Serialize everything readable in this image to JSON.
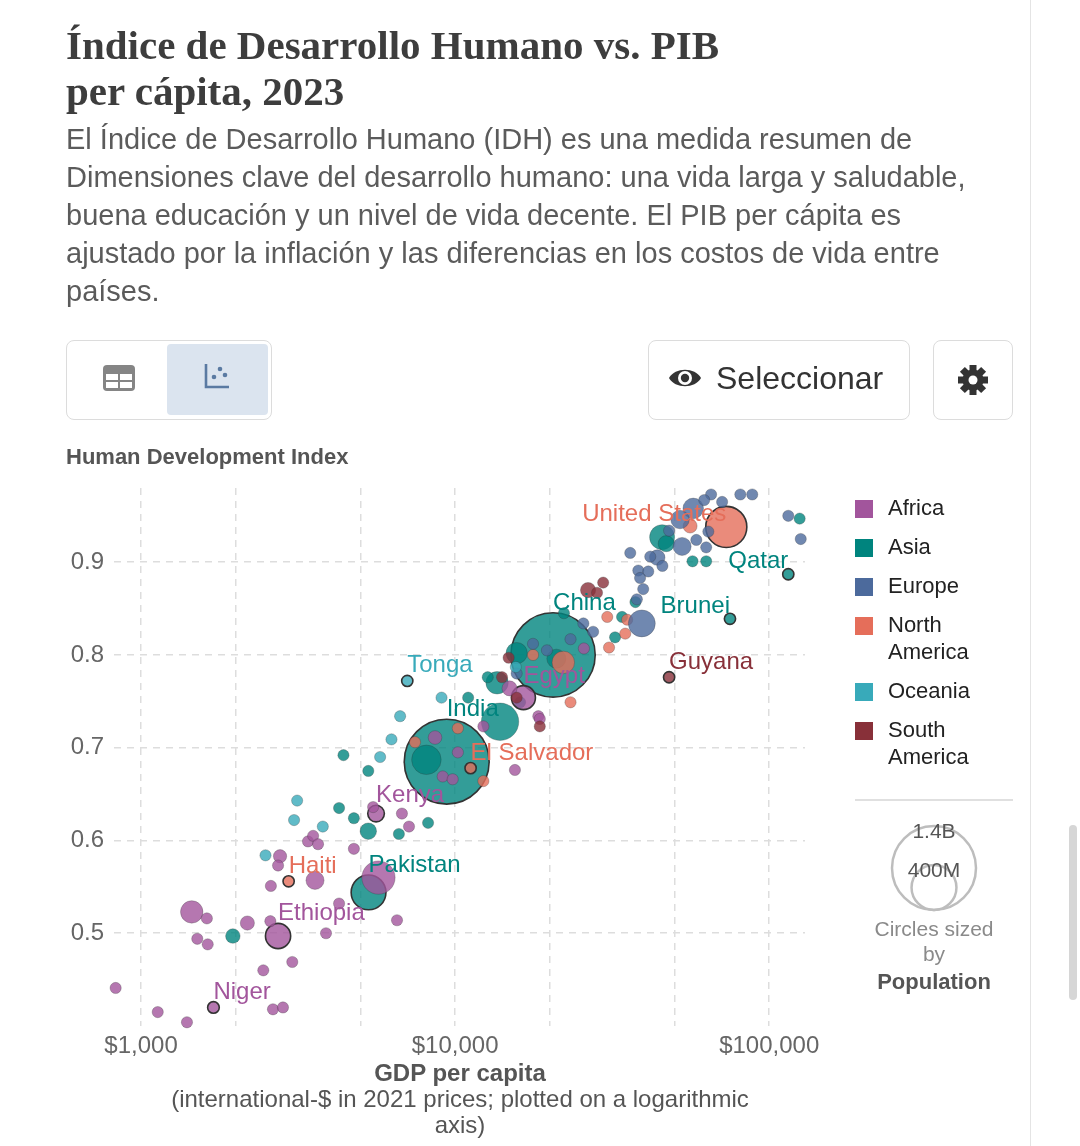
{
  "chart_data": {
    "type": "bubble",
    "title": "Índice de Desarrollo Humano vs. PIB per cápita, 2023",
    "subtitle": "El Índice de Desarrollo Humano (IDH) es una medida resumen de Dimensiones clave del desarrollo humano: una vida larga y saludable, buena educación y un nivel de vida decente. El PIB per cápita es ajustado por la inflación y las diferencias en los costos de vida entre países.",
    "xlabel": "GDP per capita (international-$ in 2021 prices; plotted on a logarithmic axis)",
    "ylabel": "Human Development Index",
    "log": "x",
    "xlim": [
      820,
      130000
    ],
    "ylim": [
      0.4,
      0.98
    ],
    "xticks": [
      {
        "value": 1000,
        "label": "$1,000"
      },
      {
        "value": 2000,
        "label": null
      },
      {
        "value": 5000,
        "label": null
      },
      {
        "value": 10000,
        "label": "$10,000"
      },
      {
        "value": 20000,
        "label": null
      },
      {
        "value": 50000,
        "label": null
      },
      {
        "value": 100000,
        "label": "$100,000"
      }
    ],
    "yticks": [
      0.5,
      0.6,
      0.7,
      0.8,
      0.9
    ],
    "grid": true,
    "legend": "right",
    "size_legend": [
      {
        "value": 1400,
        "label": "1.4B"
      },
      {
        "value": 400,
        "label": "400M"
      }
    ],
    "annotations": [
      "Seleccionar",
      "Circles sized by Population",
      {
        "text": "United States",
        "x": 73000,
        "y": 0.938
      },
      {
        "text": "Qatar",
        "x": 115000,
        "y": 0.887
      },
      {
        "text": "China",
        "x": 20500,
        "y": 0.8
      },
      {
        "text": "Brunei",
        "x": 75000,
        "y": 0.839
      },
      {
        "text": "Guyana",
        "x": 48000,
        "y": 0.776
      },
      {
        "text": "Tonga",
        "x": 7040,
        "y": 0.772
      },
      {
        "text": "Egypt",
        "x": 16500,
        "y": 0.754
      },
      {
        "text": "India",
        "x": 9400,
        "y": 0.685
      },
      {
        "text": "El Salvador",
        "x": 11200,
        "y": 0.678
      },
      {
        "text": "Kenya",
        "x": 5600,
        "y": 0.629
      },
      {
        "text": "Haiti",
        "x": 2950,
        "y": 0.556
      },
      {
        "text": "Pakistan",
        "x": 5300,
        "y": 0.544
      },
      {
        "text": "Ethiopia",
        "x": 2730,
        "y": 0.497
      },
      {
        "text": "Niger",
        "x": 1700,
        "y": 0.42
      }
    ],
    "series": [
      {
        "name": "Africa",
        "color": "#a2559c",
        "x": [
          5700,
          2730,
          16500,
          1450,
          3580,
          5600,
          14900,
          2180,
          8630,
          2770,
          830,
          1130,
          1400,
          1700,
          2630,
          2830,
          2450,
          3030,
          1620,
          1510,
          1630,
          2580,
          2590,
          3880,
          2730,
          3400,
          3530,
          3660,
          4760,
          4270,
          6530,
          5480,
          6770,
          7130,
          15500,
          10200,
          9130,
          9820,
          25700,
          18400,
          18600,
          12300
        ],
        "values": [
          0.56,
          0.497,
          0.754,
          0.523,
          0.557,
          0.629,
          0.764,
          0.511,
          0.711,
          0.583,
          0.441,
          0.415,
          0.404,
          0.42,
          0.418,
          0.42,
          0.46,
          0.469,
          0.516,
          0.494,
          0.488,
          0.513,
          0.551,
          0.5,
          0.573,
          0.599,
          0.605,
          0.596,
          0.591,
          0.532,
          0.514,
          0.636,
          0.629,
          0.615,
          0.676,
          0.695,
          0.669,
          0.666,
          0.807,
          0.734,
          0.731,
          0.723
        ],
        "sizes": [
          220,
          126,
          114,
          100,
          65,
          55,
          45,
          40,
          37,
          35,
          25,
          25,
          25,
          27,
          25,
          25,
          25,
          25,
          25,
          25,
          25,
          25,
          25,
          25,
          25,
          25,
          25,
          25,
          25,
          25,
          25,
          25,
          25,
          25,
          25,
          25,
          25,
          25,
          25,
          25,
          25,
          25
        ]
      },
      {
        "name": "Asia",
        "color": "#00847e",
        "x": [
          9400,
          20500,
          13900,
          5300,
          8100,
          45600,
          13600,
          15700,
          21000,
          5290,
          47000,
          1960,
          4410,
          5290,
          4270,
          4760,
          6620,
          8200,
          12700,
          22200,
          32300,
          34000,
          37500,
          75000,
          115000,
          57000,
          63000,
          125000,
          11000,
          16100
        ],
        "values": [
          0.685,
          0.8,
          0.728,
          0.544,
          0.687,
          0.927,
          0.77,
          0.802,
          0.796,
          0.61,
          0.92,
          0.497,
          0.692,
          0.675,
          0.635,
          0.624,
          0.607,
          0.619,
          0.776,
          0.845,
          0.819,
          0.841,
          0.857,
          0.839,
          0.887,
          0.901,
          0.901,
          0.947,
          0.754,
          0.749
        ],
        "sizes": [
          1430,
          1410,
          278,
          240,
          173,
          124,
          100,
          90,
          72,
          54,
          52,
          42,
          25,
          25,
          25,
          25,
          25,
          25,
          25,
          25,
          25,
          25,
          25,
          25,
          25,
          25,
          25,
          25,
          25,
          25
        ]
      },
      {
        "name": "Europe",
        "color": "#4c6a9c",
        "x": [
          39300,
          57300,
          52000,
          52800,
          44000,
          65300,
          80900,
          88300,
          70800,
          62100,
          115000,
          126000,
          58600,
          63000,
          64000,
          48000,
          36100,
          41800,
          45700,
          38300,
          41200,
          38800,
          39700,
          37900,
          27500,
          25600,
          23300,
          17700,
          19600,
          15700
        ],
        "values": [
          0.834,
          0.958,
          0.946,
          0.917,
          0.905,
          0.973,
          0.973,
          0.973,
          0.965,
          0.967,
          0.95,
          0.925,
          0.924,
          0.916,
          0.933,
          0.934,
          0.91,
          0.906,
          0.896,
          0.891,
          0.89,
          0.883,
          0.871,
          0.86,
          0.825,
          0.834,
          0.817,
          0.812,
          0.805,
          0.78
        ],
        "sizes": [
          144,
          84,
          68,
          65,
          48,
          25,
          25,
          25,
          25,
          25,
          25,
          25,
          25,
          25,
          25,
          25,
          25,
          25,
          25,
          25,
          25,
          25,
          25,
          25,
          25,
          25,
          25,
          25,
          25,
          25
        ]
      },
      {
        "name": "North America",
        "color": "#e56e5a",
        "x": [
          73000,
          22100,
          56000,
          2950,
          11200,
          12300,
          7450,
          10200,
          30500,
          35300,
          34800,
          30900,
          23300,
          17700
        ],
        "values": [
          0.938,
          0.792,
          0.939,
          0.556,
          0.678,
          0.664,
          0.706,
          0.721,
          0.841,
          0.838,
          0.823,
          0.808,
          0.749,
          0.8
        ],
        "sizes": [
          335,
          100,
          39,
          25,
          25,
          25,
          25,
          25,
          25,
          25,
          25,
          25,
          25,
          25
        ]
      },
      {
        "name": "Oceania",
        "color": "#38aaba",
        "x": [
          7040,
          6680,
          6270,
          5770,
          9050,
          3140,
          3070,
          3790,
          2490,
          15600
        ],
        "values": [
          0.772,
          0.734,
          0.709,
          0.69,
          0.754,
          0.643,
          0.622,
          0.615,
          0.584,
          0.787
        ],
        "sizes": [
          25,
          25,
          25,
          25,
          25,
          25,
          25,
          25,
          25,
          25
        ]
      },
      {
        "name": "South America",
        "color": "#883039",
        "x": [
          26500,
          48000,
          29600,
          28300,
          14800,
          15700,
          18600,
          14100
        ],
        "values": [
          0.87,
          0.776,
          0.878,
          0.867,
          0.797,
          0.754,
          0.723,
          0.776
        ],
        "sizes": [
          46,
          25,
          25,
          25,
          25,
          25,
          25,
          25
        ]
      }
    ]
  }
}
